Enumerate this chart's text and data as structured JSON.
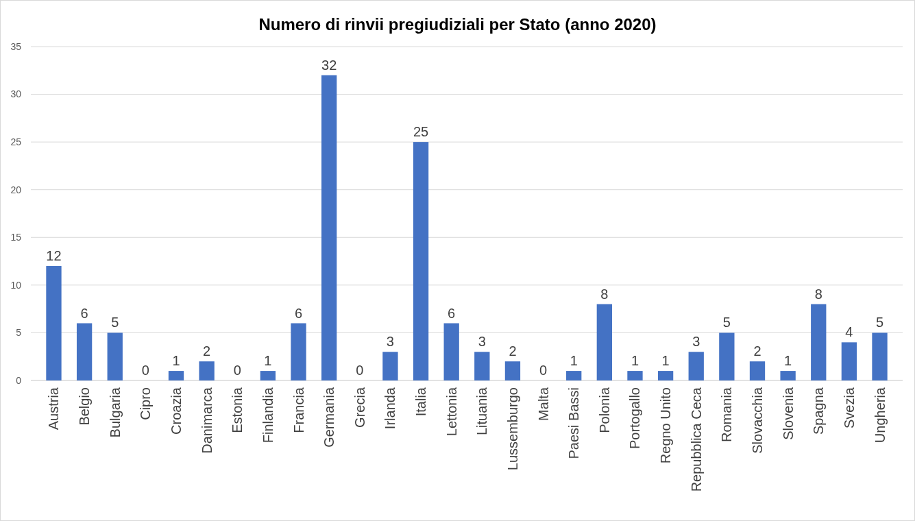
{
  "chart_data": {
    "type": "bar",
    "title": "Numero di rinvii pregiudiziali per Stato (anno 2020)",
    "categories": [
      "Austria",
      "Belgio",
      "Bulgaria",
      "Cipro",
      "Croazia",
      "Danimarca",
      "Estonia",
      "Finlandia",
      "Francia",
      "Germania",
      "Grecia",
      "Irlanda",
      "Italia",
      "Lettonia",
      "Lituania",
      "Lussemburgo",
      "Malta",
      "Paesi Bassi",
      "Polonia",
      "Portogallo",
      "Regno Unito",
      "Repubblica Ceca",
      "Romania",
      "Slovacchia",
      "Slovenia",
      "Spagna",
      "Svezia",
      "Ungheria"
    ],
    "values": [
      12,
      6,
      5,
      0,
      1,
      2,
      0,
      1,
      6,
      32,
      0,
      3,
      25,
      6,
      3,
      2,
      0,
      1,
      8,
      1,
      1,
      3,
      5,
      2,
      1,
      8,
      4,
      5
    ],
    "color": "#4472c4",
    "ylim": [
      0,
      35
    ],
    "yticks": [
      0,
      5,
      10,
      15,
      20,
      25,
      30,
      35
    ],
    "grid": "y",
    "data_labels": true
  }
}
